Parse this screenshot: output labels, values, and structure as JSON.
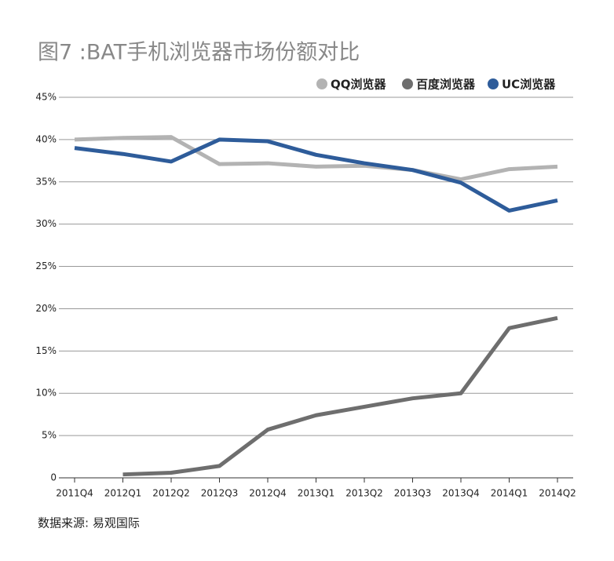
{
  "chart_data": {
    "type": "line",
    "title": "图7 :BAT手机浏览器市场份额对比",
    "source": "数据来源: 易观国际",
    "categories": [
      "2011Q4",
      "2012Q1",
      "2012Q2",
      "2012Q3",
      "2012Q4",
      "2013Q1",
      "2013Q2",
      "2013Q3",
      "2013Q4",
      "2014Q1",
      "2014Q2"
    ],
    "series": [
      {
        "name": "QQ浏览器",
        "color": "#b3b3b3",
        "values": [
          40.0,
          40.2,
          40.3,
          37.1,
          37.2,
          36.8,
          36.9,
          36.4,
          35.3,
          36.5,
          36.8
        ]
      },
      {
        "name": "百度浏览器",
        "color": "#6e6e6e",
        "values": [
          null,
          0.4,
          0.6,
          1.4,
          5.7,
          7.4,
          8.4,
          9.4,
          10.0,
          17.7,
          18.9
        ]
      },
      {
        "name": "UC浏览器",
        "color": "#2e5c9a",
        "values": [
          39.0,
          38.3,
          37.4,
          40.0,
          39.8,
          38.2,
          37.2,
          36.4,
          34.9,
          31.6,
          32.8
        ]
      }
    ],
    "ylim": [
      0,
      45
    ],
    "yticks": [
      0,
      {
        "value": 5,
        "label": "5%"
      },
      {
        "value": 10,
        "label": "10%"
      },
      {
        "value": 15,
        "label": "15%"
      },
      {
        "value": 20,
        "label": "20%"
      },
      {
        "value": 25,
        "label": "25%"
      },
      {
        "value": 30,
        "label": "30%"
      },
      {
        "value": 35,
        "label": "35%"
      },
      {
        "value": 40,
        "label": "40%"
      },
      {
        "value": 45,
        "label": "45%"
      }
    ],
    "grid": true,
    "legend": "top-right"
  }
}
